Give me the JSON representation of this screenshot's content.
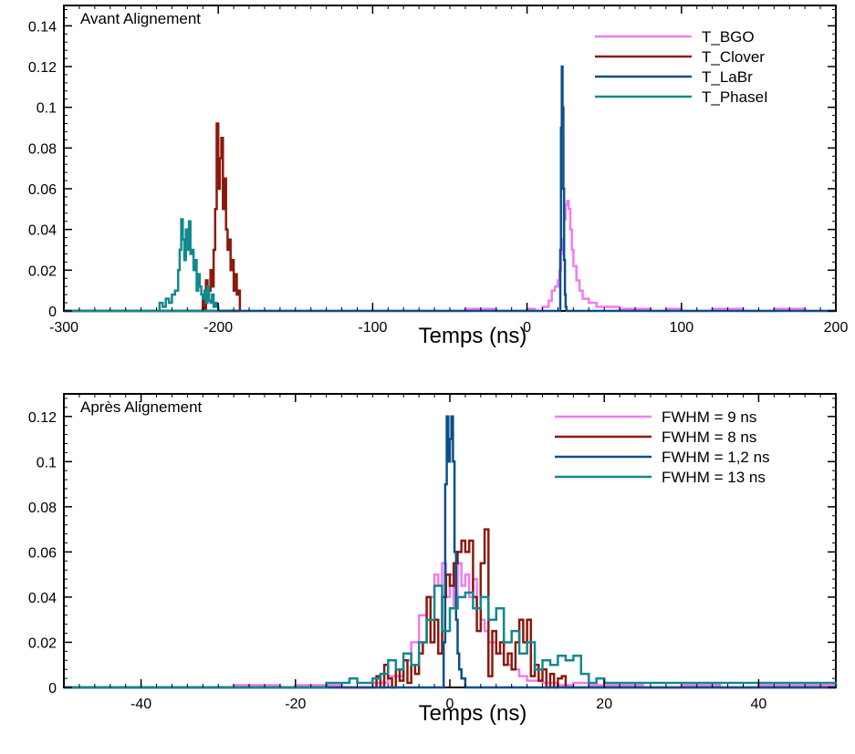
{
  "chart_data": [
    {
      "type": "line",
      "title": "Avant Alignement",
      "xlabel": "Temps (ns)",
      "ylabel": "",
      "xlim": [
        -300,
        200
      ],
      "ylim": [
        0,
        0.15
      ],
      "xticks": [
        -300,
        -200,
        -100,
        0,
        100,
        200
      ],
      "xtick_labels": [
        "-300",
        "-200",
        "-100",
        "0",
        "100",
        "200"
      ],
      "yticks": [
        0,
        0.02,
        0.04,
        0.06,
        0.08,
        0.1,
        0.12,
        0.14
      ],
      "ytick_labels": [
        "0",
        "0.02",
        "0.04",
        "0.06",
        "0.08",
        "0.1",
        "0.12",
        "0.14"
      ],
      "grid": false,
      "legend_position": "top-right",
      "series": [
        {
          "name": "T_BGO",
          "color": "#f07cf0",
          "x": [
            -300,
            -60,
            -40,
            -20,
            0,
            5,
            10,
            14,
            16,
            18,
            20,
            21,
            22,
            23,
            24,
            25,
            26,
            27,
            28,
            29,
            30,
            32,
            34,
            36,
            40,
            45,
            50,
            60,
            70,
            80,
            90,
            100,
            120,
            140,
            160,
            180,
            200
          ],
          "y": [
            0,
            0,
            0.001,
            0,
            0.001,
            0,
            0.002,
            0.005,
            0.01,
            0.012,
            0.015,
            0.02,
            0.028,
            0.035,
            0.045,
            0.052,
            0.054,
            0.05,
            0.04,
            0.03,
            0.022,
            0.015,
            0.01,
            0.006,
            0.004,
            0.002,
            0.002,
            0.001,
            0.001,
            0,
            0.001,
            0,
            0.001,
            0,
            0.001,
            0,
            0
          ]
        },
        {
          "name": "T_Clover",
          "color": "#8b1a0a",
          "x": [
            -300,
            -212,
            -210,
            -209,
            -208,
            -207,
            -206,
            -205,
            -204,
            -203,
            -202,
            -201,
            -200,
            -199,
            -198,
            -197,
            -196,
            -195,
            -194,
            -193,
            -192,
            -191,
            -190,
            -189,
            -188,
            -187,
            -186,
            -300
          ],
          "y": [
            0,
            0,
            0.008,
            0,
            0.015,
            0.005,
            0.01,
            0.02,
            0.012,
            0.03,
            0.05,
            0.092,
            0.06,
            0.075,
            0.085,
            0.05,
            0.065,
            0.04,
            0.03,
            0.035,
            0.02,
            0.025,
            0.01,
            0.018,
            0.008,
            0.01,
            0,
            0
          ]
        },
        {
          "name": "T_LaBr",
          "color": "#0b4f8c",
          "x": [
            -300,
            21,
            21.5,
            22,
            22.5,
            23,
            23.5,
            24,
            24.5,
            25,
            25.5,
            200
          ],
          "y": [
            0,
            0,
            0.03,
            0.09,
            0.12,
            0.1,
            0.06,
            0.025,
            0.008,
            0.002,
            0,
            0
          ]
        },
        {
          "name": "T_PhaseI",
          "color": "#12898e",
          "x": [
            -300,
            -240,
            -238,
            -236,
            -234,
            -232,
            -230,
            -228,
            -226,
            -225,
            -224,
            -223,
            -222,
            -221,
            -220,
            -219,
            -218,
            -217,
            -216,
            -215,
            -214,
            -213,
            -212,
            -211,
            -210,
            -209,
            -208,
            -207,
            -206,
            -205,
            -204,
            -203,
            -202,
            -201,
            -200,
            -300
          ],
          "y": [
            0,
            0,
            0.004,
            0.002,
            0.006,
            0.004,
            0.008,
            0.01,
            0.02,
            0.03,
            0.045,
            0.035,
            0.025,
            0.04,
            0.03,
            0.044,
            0.028,
            0.03,
            0.02,
            0.025,
            0.01,
            0.018,
            0.012,
            0.008,
            0.006,
            0.01,
            0.004,
            0.012,
            0.005,
            0.004,
            0.008,
            0.002,
            0.004,
            0.002,
            0,
            0
          ]
        }
      ]
    },
    {
      "type": "line",
      "title": "Après Alignement",
      "xlabel": "Temps (ns)",
      "ylabel": "",
      "xlim": [
        -50,
        50
      ],
      "ylim": [
        0,
        0.13
      ],
      "xticks": [
        -40,
        -20,
        0,
        20,
        40
      ],
      "xtick_labels": [
        "-40",
        "-20",
        "0",
        "20",
        "40"
      ],
      "yticks": [
        0,
        0.02,
        0.04,
        0.06,
        0.08,
        0.1,
        0.12
      ],
      "ytick_labels": [
        "0",
        "0.02",
        "0.04",
        "0.06",
        "0.08",
        "0.1",
        "0.12"
      ],
      "grid": false,
      "legend_position": "top-right",
      "series": [
        {
          "name": "FWHM = 9 ns",
          "color": "#f07cf0",
          "x": [
            -50,
            -30,
            -28,
            -22,
            -20,
            -14,
            -10,
            -8,
            -6,
            -5,
            -4,
            -3,
            -2,
            -1.5,
            -1,
            -0.5,
            0,
            0.5,
            1,
            1.5,
            2,
            2.5,
            3,
            3.5,
            4,
            4.5,
            5,
            6,
            7,
            8,
            9,
            10,
            12,
            14,
            16,
            18,
            20,
            25,
            30,
            35,
            40,
            45,
            50
          ],
          "y": [
            0,
            0,
            0.001,
            0,
            0.001,
            0,
            0.002,
            0.005,
            0.012,
            0.02,
            0.032,
            0.04,
            0.05,
            0.045,
            0.055,
            0.04,
            0.05,
            0.035,
            0.055,
            0.045,
            0.05,
            0.04,
            0.048,
            0.035,
            0.03,
            0.025,
            0.02,
            0.015,
            0.01,
            0.008,
            0.005,
            0.003,
            0.002,
            0.001,
            0.002,
            0.001,
            0.001,
            0,
            0.001,
            0,
            0.001,
            0.001,
            0
          ]
        },
        {
          "name": "FWHM = 8 ns",
          "color": "#8b1a0a",
          "x": [
            -50,
            -10,
            -9.5,
            -9,
            -8.5,
            -8,
            -7.5,
            -7,
            -6.5,
            -6,
            -5.5,
            -5,
            -4.5,
            -4,
            -3.5,
            -3,
            -2.5,
            -2,
            -1.5,
            -1,
            -0.5,
            0,
            0.5,
            1,
            1.5,
            2,
            2.5,
            3,
            3.5,
            4,
            4.5,
            5,
            5.5,
            6,
            6.5,
            7,
            7.5,
            8,
            8.5,
            9,
            9.5,
            10,
            10.5,
            11,
            11.5,
            12,
            12.5,
            13,
            13.5,
            14,
            14.5,
            15,
            50
          ],
          "y": [
            0,
            0,
            0.005,
            0,
            0.01,
            0.004,
            0,
            0.008,
            0.003,
            0.012,
            0.002,
            0.01,
            0.006,
            0.015,
            0.02,
            0.04,
            0.02,
            0.03,
            0.015,
            0.04,
            0.05,
            0.045,
            0.055,
            0.06,
            0.065,
            0.06,
            0.065,
            0.04,
            0.025,
            0.055,
            0.07,
            0.005,
            0.025,
            0.015,
            0.02,
            0.01,
            0.015,
            0.008,
            0.02,
            0.03,
            0.02,
            0.03,
            0.005,
            0.01,
            0.003,
            0.008,
            0,
            0.006,
            0,
            0.004,
            0.005,
            0,
            0
          ]
        },
        {
          "name": "FWHM = 1,2 ns",
          "color": "#0b4f8c",
          "x": [
            -50,
            -1,
            -0.8,
            -0.6,
            -0.4,
            -0.2,
            0,
            0.2,
            0.4,
            0.6,
            0.8,
            1,
            1.2,
            1.5,
            2,
            50
          ],
          "y": [
            0,
            0,
            0.02,
            0.09,
            0.12,
            0.1,
            0.11,
            0.12,
            0.1,
            0.06,
            0.03,
            0.015,
            0.008,
            0.004,
            0,
            0
          ]
        },
        {
          "name": "FWHM = 13 ns",
          "color": "#12898e",
          "x": [
            -50,
            -20,
            -16,
            -13,
            -12,
            -10,
            -9,
            -8,
            -7,
            -6,
            -5,
            -4,
            -3,
            -2,
            -1,
            0,
            1,
            2,
            3,
            4,
            5,
            6,
            7,
            8,
            9,
            10,
            11,
            12,
            13,
            14,
            15,
            16,
            17,
            18,
            19,
            20,
            50
          ],
          "y": [
            0,
            0,
            0.002,
            0.004,
            0.002,
            0.004,
            0.006,
            0.012,
            0.008,
            0.015,
            0.01,
            0.02,
            0.03,
            0.045,
            0.025,
            0.035,
            0.04,
            0.042,
            0.035,
            0.04,
            0.03,
            0.035,
            0.02,
            0.025,
            0.015,
            0.02,
            0.008,
            0.012,
            0.01,
            0.014,
            0.012,
            0.014,
            0.006,
            0.002,
            0.004,
            0.002,
            0
          ]
        }
      ]
    }
  ]
}
